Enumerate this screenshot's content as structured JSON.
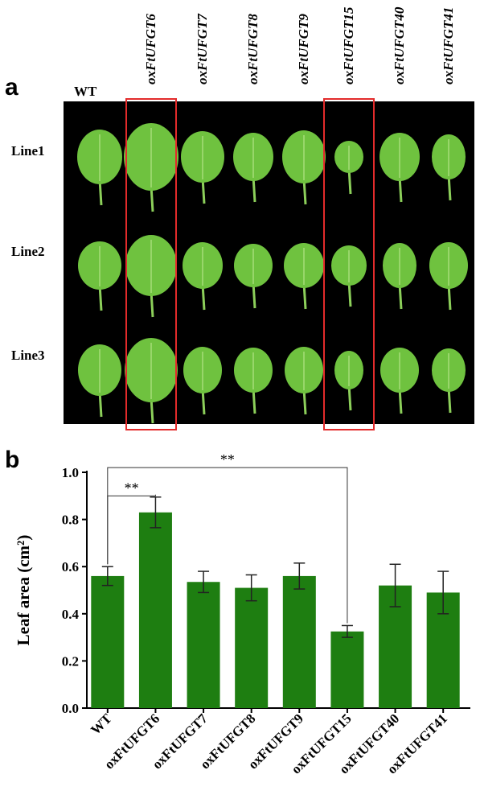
{
  "panels": {
    "a": "a",
    "b": "b"
  },
  "photo": {
    "columns": [
      "WT",
      "oxFtUFGT6",
      "oxFtUFGT7",
      "oxFtUFGT8",
      "oxFtUFGT9",
      "oxFtUFGT15",
      "oxFtUFGT40",
      "oxFtUFGT41"
    ],
    "rows": [
      "Line1",
      "Line2",
      "Line3"
    ],
    "highlighted_columns": [
      "oxFtUFGT6",
      "oxFtUFGT15"
    ],
    "background": "#000000",
    "leaf_color": "#6fc23f",
    "highlight_color": "#e32b2b"
  },
  "chart_data": {
    "type": "bar",
    "categories": [
      "WT",
      "oxFtUFGT6",
      "oxFtUFGT7",
      "oxFtUFGT8",
      "oxFtUFGT9",
      "oxFtUFGT15",
      "oxFtUFGT40",
      "oxFtUFGT41"
    ],
    "values": [
      0.56,
      0.83,
      0.535,
      0.51,
      0.56,
      0.325,
      0.52,
      0.49
    ],
    "errors": [
      0.04,
      0.065,
      0.045,
      0.055,
      0.055,
      0.025,
      0.09,
      0.09
    ],
    "ylabel": "Leaf area (cm²)",
    "ylim": [
      0,
      1.0
    ],
    "yticks": [
      "0.0",
      "0.2",
      "0.4",
      "0.6",
      "0.8",
      "1.0"
    ],
    "bar_color": "#1e7e11",
    "significance": [
      {
        "from": "WT",
        "to": "oxFtUFGT6",
        "label": "**"
      },
      {
        "from": "WT",
        "to": "oxFtUFGT15",
        "label": "**"
      }
    ]
  }
}
